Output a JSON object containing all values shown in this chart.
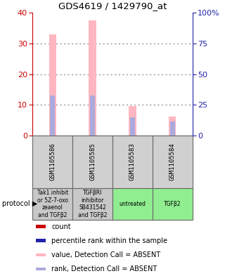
{
  "title": "GDS4619 / 1429790_at",
  "samples": [
    "GSM1105586",
    "GSM1105585",
    "GSM1105583",
    "GSM1105584"
  ],
  "protocols": [
    "Tak1 inhibit\nor 5Z-7-oxo\nzeaenol\nand TGFβ2",
    "TGFβRI\ninhibitor\nSB431542\nand TGFβ2",
    "untreated",
    "TGFβ2"
  ],
  "protocol_colors": [
    "#c8c8c8",
    "#c8c8c8",
    "#90ee90",
    "#90ee90"
  ],
  "sample_box_color": "#d0d0d0",
  "bar_pink_values": [
    33.0,
    37.5,
    9.5,
    6.2
  ],
  "bar_blue_values": [
    13.0,
    13.0,
    6.0,
    4.5
  ],
  "bar_width": 0.18,
  "blue_bar_width": 0.12,
  "ylim_left": [
    0,
    40
  ],
  "ylim_right": [
    0,
    100
  ],
  "yticks_left": [
    0,
    10,
    20,
    30,
    40
  ],
  "yticks_right": [
    0,
    25,
    50,
    75,
    100
  ],
  "ytick_labels_right": [
    "0",
    "25",
    "50",
    "75",
    "100%"
  ],
  "color_pink": "#ffb6c1",
  "color_blue_light": "#aaaadd",
  "color_red": "#cc0000",
  "color_blue_dark": "#2222aa",
  "left_axis_color": "#cc0000",
  "right_axis_color": "#2222aa",
  "grid_color": "#888888",
  "sample_label_size": 6.5,
  "protocol_label_size": 5.5,
  "legend_fontsize": 7,
  "title_fontsize": 9.5
}
